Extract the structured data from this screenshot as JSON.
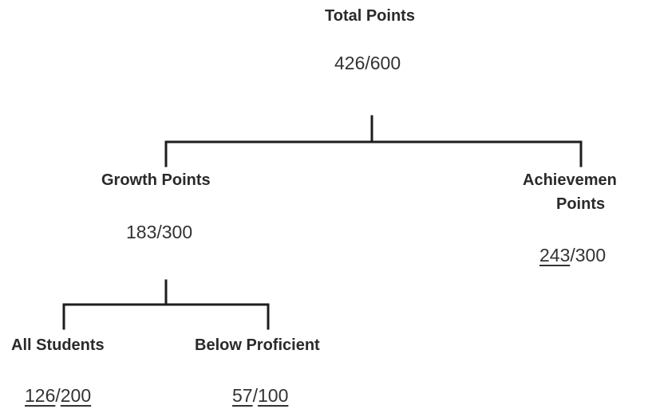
{
  "total": {
    "label": "Total Points",
    "earned": "426",
    "possible": "600"
  },
  "growth": {
    "label": "Growth Points",
    "earned": "183",
    "possible": "300"
  },
  "achievement": {
    "label_line1": "Achievemen",
    "label_line2": "Points",
    "earned": "243",
    "possible": "300"
  },
  "all_students": {
    "label": "All Students",
    "earned": "126",
    "possible": "200"
  },
  "below_proficient": {
    "label": "Below Proficient",
    "earned": "57",
    "possible": "100"
  },
  "separator": "/"
}
